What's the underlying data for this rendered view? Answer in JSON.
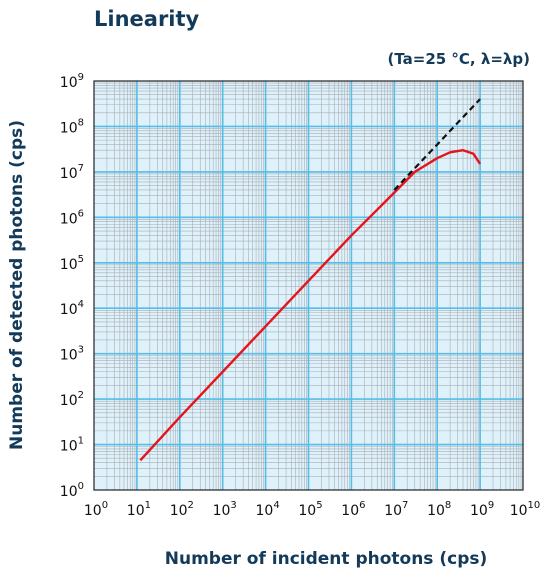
{
  "chart_data": {
    "type": "line",
    "title": "Linearity",
    "subtitle": "(Ta=25 °C, λ=λp)",
    "xlabel": "Number of incident photons (cps)",
    "ylabel": "Number of detected photons (cps)",
    "xscale": "log",
    "yscale": "log",
    "xlim": [
      1,
      10000000000
    ],
    "ylim": [
      1,
      1000000000
    ],
    "grid": true,
    "x_ticks": [
      {
        "base": "10",
        "exp": "0"
      },
      {
        "base": "10",
        "exp": "1"
      },
      {
        "base": "10",
        "exp": "2"
      },
      {
        "base": "10",
        "exp": "3"
      },
      {
        "base": "10",
        "exp": "4"
      },
      {
        "base": "10",
        "exp": "5"
      },
      {
        "base": "10",
        "exp": "6"
      },
      {
        "base": "10",
        "exp": "7"
      },
      {
        "base": "10",
        "exp": "8"
      },
      {
        "base": "10",
        "exp": "9"
      },
      {
        "base": "10",
        "exp": "10"
      }
    ],
    "y_ticks": [
      {
        "base": "10",
        "exp": "0"
      },
      {
        "base": "10",
        "exp": "1"
      },
      {
        "base": "10",
        "exp": "2"
      },
      {
        "base": "10",
        "exp": "3"
      },
      {
        "base": "10",
        "exp": "4"
      },
      {
        "base": "10",
        "exp": "5"
      },
      {
        "base": "10",
        "exp": "6"
      },
      {
        "base": "10",
        "exp": "7"
      },
      {
        "base": "10",
        "exp": "8"
      },
      {
        "base": "10",
        "exp": "9"
      }
    ],
    "series": [
      {
        "style": "solid",
        "color": "#e8141c",
        "points": [
          [
            12,
            4.5
          ],
          [
            100,
            40
          ],
          [
            1000,
            400
          ],
          [
            10000,
            4000
          ],
          [
            100000,
            40000
          ],
          [
            1000000,
            400000
          ],
          [
            10000000,
            3500000
          ],
          [
            30000000,
            10000000
          ],
          [
            100000000,
            20000000
          ],
          [
            200000000,
            27000000
          ],
          [
            400000000,
            30000000
          ],
          [
            700000000,
            25000000
          ],
          [
            1000000000,
            15000000
          ]
        ]
      },
      {
        "style": "dashed",
        "color": "#111111",
        "points": [
          [
            10000000,
            4000000
          ],
          [
            1000000000,
            400000000
          ]
        ]
      }
    ]
  },
  "colors": {
    "plot_background": "#dff2fb",
    "major_grid": "#55bde8",
    "minor_grid": "#a8aeb3",
    "frame": "#222222",
    "text": "#143a5a"
  }
}
